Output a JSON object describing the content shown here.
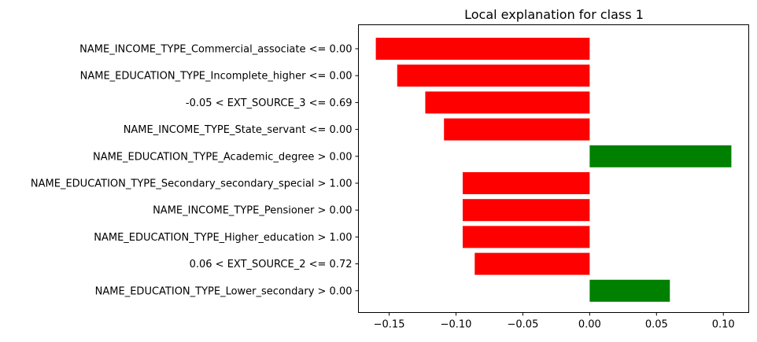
{
  "chart_data": {
    "type": "bar",
    "orientation": "horizontal",
    "title": "Local explanation for class 1",
    "xlabel": "",
    "ylabel": "",
    "xlim": [
      -0.173,
      0.119
    ],
    "grid": false,
    "legend": "none",
    "x_ticks": [
      -0.15,
      -0.1,
      -0.05,
      0.0,
      0.05,
      0.1
    ],
    "x_tick_labels": [
      "−0.15",
      "−0.10",
      "−0.05",
      "0.00",
      "0.05",
      "0.10"
    ],
    "categories": [
      "NAME_INCOME_TYPE_Commercial_associate <= 0.00",
      "NAME_EDUCATION_TYPE_Incomplete_higher <= 0.00",
      "-0.05 < EXT_SOURCE_3 <= 0.69",
      "NAME_INCOME_TYPE_State_servant <= 0.00",
      "NAME_EDUCATION_TYPE_Academic_degree > 0.00",
      "NAME_EDUCATION_TYPE_Secondary_secondary_special > 1.00",
      "NAME_INCOME_TYPE_Pensioner > 0.00",
      "NAME_EDUCATION_TYPE_Higher_education > 1.00",
      "0.06 < EXT_SOURCE_2 <= 0.72",
      "NAME_EDUCATION_TYPE_Lower_secondary > 0.00"
    ],
    "values": [
      -0.16,
      -0.144,
      -0.123,
      -0.109,
      0.106,
      -0.095,
      -0.095,
      -0.095,
      -0.086,
      0.06
    ],
    "colors": {
      "positive": "#008000",
      "negative": "#ff0000"
    }
  }
}
